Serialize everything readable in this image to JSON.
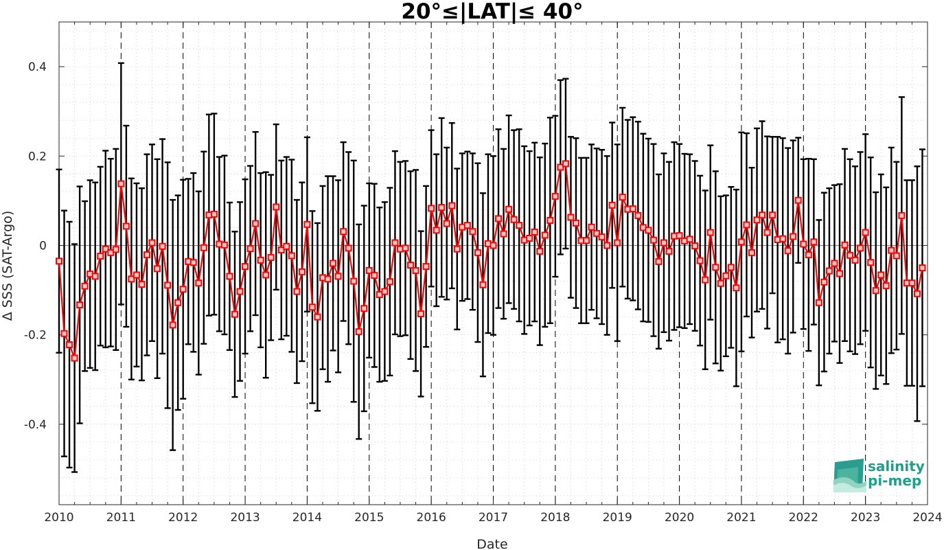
{
  "chart_data": {
    "type": "line",
    "title": "20°≤|LAT|≤ 40°",
    "xlabel": "Date",
    "ylabel": "Δ SSS (SAT-Argo)",
    "xlim": [
      "2010-01",
      "2024-01"
    ],
    "ylim": [
      -0.58,
      0.5
    ],
    "x_ticks": [
      "2010",
      "2011",
      "2012",
      "2013",
      "2014",
      "2015",
      "2016",
      "2017",
      "2018",
      "2019",
      "2020",
      "2021",
      "2022",
      "2023",
      "2024"
    ],
    "y_ticks": [
      {
        "value": -0.4,
        "label": "-0.4"
      },
      {
        "value": -0.2,
        "label": "-0.2"
      },
      {
        "value": 0,
        "label": "0"
      },
      {
        "value": 0.2,
        "label": "0.2"
      },
      {
        "value": 0.4,
        "label": "0.4"
      }
    ],
    "grid": "minor dotted",
    "vertical_reference_lines": "dashed at each January",
    "series": [
      {
        "color": "#ff0000",
        "errorbar_color": "#000000",
        "start": "2010-01",
        "step": "1 month",
        "values": [
          -0.035,
          -0.197,
          -0.222,
          -0.252,
          -0.133,
          -0.091,
          -0.064,
          -0.069,
          -0.024,
          -0.008,
          -0.016,
          -0.009,
          0.138,
          0.043,
          -0.075,
          -0.066,
          -0.087,
          -0.021,
          0.006,
          -0.052,
          -0.002,
          -0.089,
          -0.178,
          -0.128,
          -0.098,
          -0.036,
          -0.038,
          -0.084,
          -0.005,
          0.068,
          0.07,
          0.003,
          0.001,
          -0.069,
          -0.154,
          -0.103,
          -0.047,
          -0.007,
          0.049,
          -0.033,
          -0.066,
          -0.027,
          0.086,
          -0.01,
          -0.002,
          -0.023,
          -0.103,
          -0.059,
          0.047,
          -0.138,
          -0.16,
          -0.072,
          -0.075,
          -0.04,
          -0.069,
          0.031,
          -0.006,
          -0.08,
          -0.193,
          -0.141,
          -0.056,
          -0.067,
          -0.11,
          -0.103,
          -0.081,
          0.006,
          -0.008,
          -0.006,
          -0.044,
          -0.056,
          -0.153,
          -0.047,
          0.083,
          0.034,
          0.085,
          0.049,
          0.089,
          -0.008,
          0.041,
          0.045,
          0.031,
          -0.016,
          -0.088,
          0.004,
          0.0,
          0.06,
          0.026,
          0.081,
          0.058,
          0.045,
          0.012,
          0.016,
          0.03,
          -0.013,
          0.023,
          0.056,
          0.11,
          0.175,
          0.183,
          0.063,
          0.05,
          0.011,
          0.011,
          0.041,
          0.027,
          0.019,
          0.0,
          0.09,
          0.006,
          0.108,
          0.081,
          0.082,
          0.067,
          0.04,
          0.034,
          0.012,
          -0.036,
          0.006,
          -0.013,
          0.021,
          0.022,
          0.01,
          0.014,
          -0.001,
          -0.034,
          -0.077,
          0.029,
          -0.049,
          -0.085,
          -0.068,
          -0.049,
          -0.095,
          0.008,
          0.046,
          -0.016,
          0.057,
          0.068,
          0.029,
          0.068,
          0.013,
          0.015,
          -0.012,
          0.02,
          0.101,
          0.003,
          -0.021,
          0.008,
          -0.128,
          -0.082,
          -0.057,
          -0.04,
          -0.063,
          0.001,
          -0.022,
          -0.033,
          -0.006,
          0.029,
          -0.038,
          -0.101,
          -0.066,
          -0.09,
          -0.011,
          -0.023,
          0.067,
          -0.084,
          -0.084,
          -0.108,
          -0.05
        ],
        "error": [
          0.205,
          0.275,
          0.275,
          0.255,
          0.265,
          0.19,
          0.21,
          0.21,
          0.2,
          0.22,
          0.21,
          0.225,
          0.27,
          0.225,
          0.225,
          0.205,
          0.215,
          0.225,
          0.22,
          0.245,
          0.24,
          0.275,
          0.28,
          0.24,
          0.245,
          0.185,
          0.2,
          0.205,
          0.215,
          0.225,
          0.225,
          0.195,
          0.2,
          0.165,
          0.185,
          0.2,
          0.195,
          0.185,
          0.205,
          0.195,
          0.23,
          0.185,
          0.185,
          0.2,
          0.2,
          0.215,
          0.205,
          0.2,
          0.195,
          0.215,
          0.21,
          0.205,
          0.23,
          0.195,
          0.215,
          0.2,
          0.215,
          0.27,
          0.24,
          0.23,
          0.195,
          0.205,
          0.195,
          0.2,
          0.21,
          0.205,
          0.195,
          0.195,
          0.21,
          0.225,
          0.185,
          0.18,
          0.175,
          0.17,
          0.2,
          0.17,
          0.185,
          0.18,
          0.165,
          0.165,
          0.175,
          0.2,
          0.205,
          0.2,
          0.2,
          0.2,
          0.19,
          0.21,
          0.2,
          0.215,
          0.21,
          0.195,
          0.2,
          0.21,
          0.205,
          0.23,
          0.18,
          0.195,
          0.19,
          0.18,
          0.19,
          0.185,
          0.185,
          0.185,
          0.19,
          0.195,
          0.2,
          0.185,
          0.22,
          0.2,
          0.2,
          0.205,
          0.21,
          0.21,
          0.205,
          0.215,
          0.195,
          0.2,
          0.2,
          0.21,
          0.205,
          0.195,
          0.19,
          0.19,
          0.19,
          0.2,
          0.195,
          0.215,
          0.195,
          0.18,
          0.18,
          0.22,
          0.245,
          0.205,
          0.19,
          0.205,
          0.21,
          0.215,
          0.175,
          0.23,
          0.225,
          0.23,
          0.215,
          0.14,
          0.19,
          0.215,
          0.185,
          0.185,
          0.2,
          0.185,
          0.175,
          0.2,
          0.215,
          0.215,
          0.21,
          0.215,
          0.22,
          0.235,
          0.22,
          0.225,
          0.22,
          0.23,
          0.21,
          0.265,
          0.23,
          0.23,
          0.285,
          0.265
        ]
      }
    ]
  },
  "logo": {
    "line1": "salinity",
    "line2": "pi-mep",
    "color": "#1f9e8a"
  }
}
